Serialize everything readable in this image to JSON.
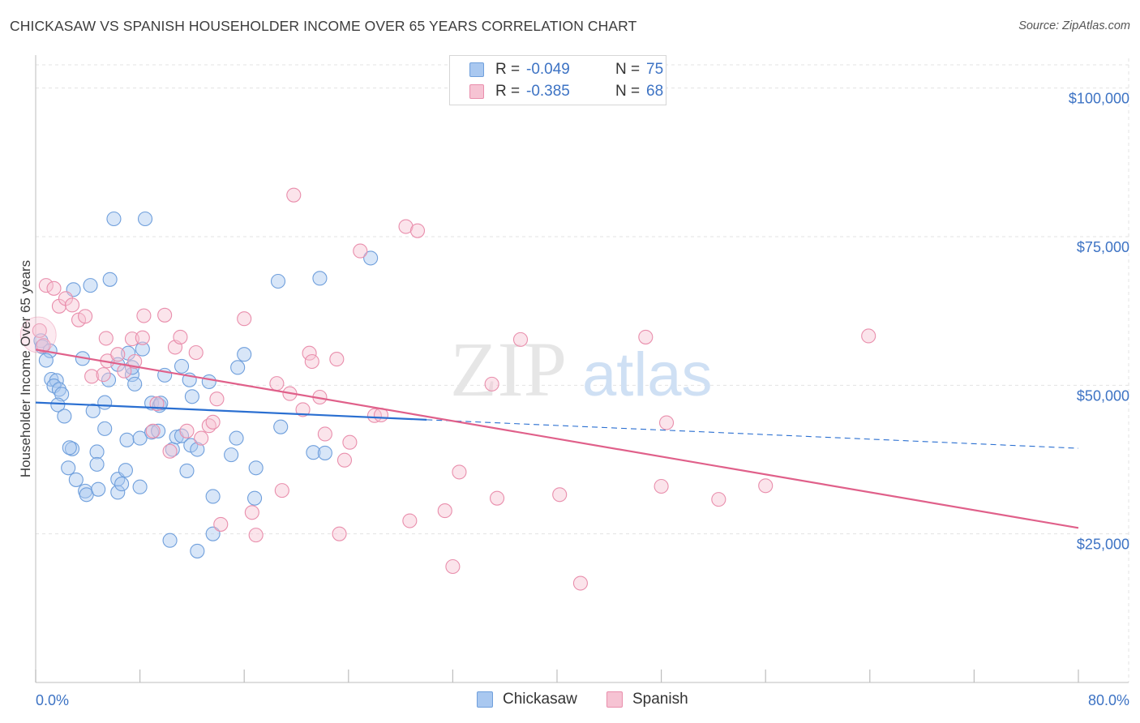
{
  "header": {
    "title": "CHICKASAW VS SPANISH HOUSEHOLDER INCOME OVER 65 YEARS CORRELATION CHART",
    "source": "Source: ZipAtlas.com"
  },
  "watermark": {
    "zip": "ZIP",
    "atlas": "atlas"
  },
  "legend_top": {
    "rows": [
      {
        "r_label": "R =",
        "r_value": "-0.049",
        "n_label": "N =",
        "n_value": "75"
      },
      {
        "r_label": "R =",
        "r_value": "-0.385",
        "n_label": "N =",
        "n_value": "68"
      }
    ]
  },
  "legend_bottom": {
    "items": [
      {
        "label": "Chickasaw"
      },
      {
        "label": "Spanish"
      }
    ]
  },
  "colors": {
    "chickasaw_fill": "#a9c8f0",
    "chickasaw_stroke": "#6f9fdc",
    "chickasaw_line": "#2a6fd1",
    "spanish_fill": "#f6c3d3",
    "spanish_stroke": "#e98eac",
    "spanish_line": "#e0608a",
    "tick_text": "#3d73c4",
    "grid": "#e3e3e3"
  },
  "chart_data": {
    "type": "scatter",
    "title": "CHICKASAW VS SPANISH HOUSEHOLDER INCOME OVER 65 YEARS CORRELATION CHART",
    "ylabel": "Householder Income Over 65 years",
    "xlabel": "",
    "xlim": [
      0,
      80
    ],
    "ylim": [
      0,
      105000
    ],
    "x_tick_labels": [
      "0.0%",
      "80.0%"
    ],
    "y_ticks": [
      {
        "value": 25000,
        "label": "$25,000"
      },
      {
        "value": 50000,
        "label": "$50,000"
      },
      {
        "value": 75000,
        "label": "$75,000"
      },
      {
        "value": 100000,
        "label": "$100,000"
      }
    ],
    "grid": true,
    "legend_position": "top-center",
    "series": [
      {
        "name": "Chickasaw",
        "r": -0.049,
        "n": 75,
        "trend": {
          "x0": 0,
          "y0": 47100,
          "x1": 30,
          "y1": 44200,
          "dashed_to_x": 80,
          "dashed_to_y": 39400
        },
        "points": [
          [
            0.4,
            57500
          ],
          [
            0.5,
            56500
          ],
          [
            1.1,
            55800
          ],
          [
            0.8,
            54200
          ],
          [
            1.2,
            51000
          ],
          [
            1.6,
            50800
          ],
          [
            1.4,
            49900
          ],
          [
            1.8,
            49300
          ],
          [
            2.0,
            48500
          ],
          [
            1.7,
            46700
          ],
          [
            2.2,
            44800
          ],
          [
            2.8,
            39300
          ],
          [
            2.6,
            39500
          ],
          [
            2.5,
            36100
          ],
          [
            3.1,
            34100
          ],
          [
            3.8,
            32200
          ],
          [
            3.9,
            31600
          ],
          [
            4.8,
            32500
          ],
          [
            2.9,
            66100
          ],
          [
            4.2,
            66800
          ],
          [
            5.7,
            67800
          ],
          [
            6.0,
            78000
          ],
          [
            8.4,
            78000
          ],
          [
            3.6,
            54500
          ],
          [
            4.4,
            45700
          ],
          [
            5.3,
            47100
          ],
          [
            4.7,
            38800
          ],
          [
            4.7,
            36700
          ],
          [
            5.3,
            42700
          ],
          [
            6.3,
            32000
          ],
          [
            6.3,
            34200
          ],
          [
            6.6,
            33400
          ],
          [
            6.9,
            35700
          ],
          [
            7.0,
            40800
          ],
          [
            7.4,
            51800
          ],
          [
            7.4,
            53000
          ],
          [
            7.6,
            50200
          ],
          [
            7.1,
            55400
          ],
          [
            6.3,
            53500
          ],
          [
            8.2,
            56100
          ],
          [
            8.0,
            41100
          ],
          [
            8.0,
            32900
          ],
          [
            8.9,
            47000
          ],
          [
            8.9,
            42100
          ],
          [
            9.5,
            46600
          ],
          [
            9.6,
            47000
          ],
          [
            9.9,
            51700
          ],
          [
            10.3,
            23900
          ],
          [
            10.5,
            39200
          ],
          [
            10.8,
            41300
          ],
          [
            11.2,
            41500
          ],
          [
            11.2,
            53200
          ],
          [
            11.6,
            35600
          ],
          [
            11.9,
            39900
          ],
          [
            11.8,
            50900
          ],
          [
            12.0,
            48100
          ],
          [
            12.4,
            39200
          ],
          [
            12.4,
            22100
          ],
          [
            13.3,
            50600
          ],
          [
            13.6,
            31300
          ],
          [
            13.6,
            25000
          ],
          [
            15.0,
            38300
          ],
          [
            15.4,
            41100
          ],
          [
            15.5,
            53000
          ],
          [
            16.0,
            55200
          ],
          [
            16.8,
            31000
          ],
          [
            16.9,
            36100
          ],
          [
            18.6,
            67500
          ],
          [
            18.8,
            43000
          ],
          [
            21.3,
            38700
          ],
          [
            21.8,
            68000
          ],
          [
            22.2,
            38600
          ],
          [
            25.7,
            71400
          ],
          [
            9.4,
            42300
          ],
          [
            5.6,
            50900
          ]
        ]
      },
      {
        "name": "Spanish",
        "r": -0.385,
        "n": 68,
        "trend": {
          "x0": 0,
          "y0": 56000,
          "x1": 80,
          "y1": 26000
        },
        "points": [
          [
            0.3,
            59200
          ],
          [
            0.6,
            56700
          ],
          [
            0.8,
            66800
          ],
          [
            1.4,
            66300
          ],
          [
            1.8,
            63300
          ],
          [
            2.3,
            64600
          ],
          [
            2.8,
            63500
          ],
          [
            3.3,
            61000
          ],
          [
            3.8,
            61600
          ],
          [
            5.4,
            57900
          ],
          [
            4.3,
            51500
          ],
          [
            5.2,
            51800
          ],
          [
            5.5,
            54100
          ],
          [
            6.3,
            55200
          ],
          [
            6.8,
            52400
          ],
          [
            7.4,
            57800
          ],
          [
            7.6,
            54000
          ],
          [
            8.2,
            58000
          ],
          [
            8.3,
            61700
          ],
          [
            9.0,
            42300
          ],
          [
            9.3,
            46900
          ],
          [
            9.9,
            61800
          ],
          [
            10.3,
            38900
          ],
          [
            10.7,
            56400
          ],
          [
            11.1,
            58100
          ],
          [
            11.6,
            42300
          ],
          [
            12.3,
            55500
          ],
          [
            12.7,
            41100
          ],
          [
            13.3,
            43200
          ],
          [
            13.9,
            47700
          ],
          [
            13.6,
            43800
          ],
          [
            14.2,
            26600
          ],
          [
            16.0,
            61200
          ],
          [
            16.6,
            28600
          ],
          [
            16.9,
            24800
          ],
          [
            18.5,
            50300
          ],
          [
            18.9,
            32300
          ],
          [
            19.5,
            48600
          ],
          [
            19.8,
            82000
          ],
          [
            20.5,
            45900
          ],
          [
            21.0,
            55400
          ],
          [
            21.2,
            54000
          ],
          [
            21.8,
            48000
          ],
          [
            22.2,
            41800
          ],
          [
            23.1,
            54400
          ],
          [
            23.3,
            25000
          ],
          [
            23.7,
            37400
          ],
          [
            24.1,
            40400
          ],
          [
            24.9,
            72600
          ],
          [
            26.0,
            44900
          ],
          [
            26.5,
            45000
          ],
          [
            28.4,
            76700
          ],
          [
            28.7,
            27200
          ],
          [
            29.3,
            76000
          ],
          [
            31.4,
            28900
          ],
          [
            32.0,
            19500
          ],
          [
            32.5,
            35400
          ],
          [
            35.0,
            50200
          ],
          [
            35.4,
            31000
          ],
          [
            37.2,
            57700
          ],
          [
            40.2,
            31600
          ],
          [
            41.8,
            16700
          ],
          [
            46.8,
            58100
          ],
          [
            48.0,
            33000
          ],
          [
            48.4,
            43700
          ],
          [
            52.4,
            30800
          ],
          [
            56.0,
            33100
          ],
          [
            63.9,
            58300
          ]
        ]
      }
    ]
  }
}
